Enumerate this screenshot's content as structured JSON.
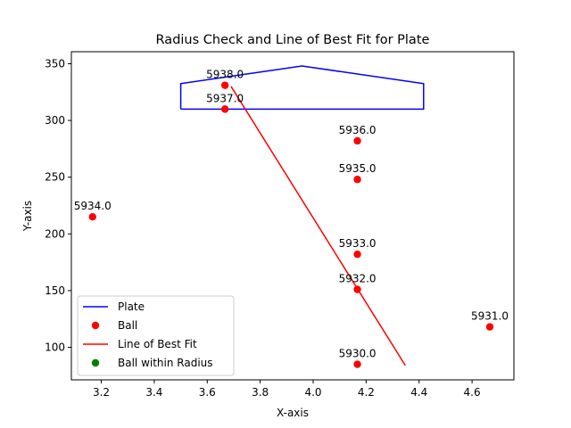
{
  "chart_data": {
    "type": "scatter",
    "title": "Radius Check and Line of Best Fit for Plate",
    "xlabel": "X-axis",
    "ylabel": "Y-axis",
    "xlim": [
      3.087,
      4.758
    ],
    "ylim": [
      71.3,
      360.6
    ],
    "xticks": [
      "3.2",
      "3.4",
      "3.6",
      "3.8",
      "4.0",
      "4.2",
      "4.4",
      "4.6"
    ],
    "xtick_values": [
      3.2,
      3.4,
      3.6,
      3.8,
      4.0,
      4.2,
      4.4,
      4.6
    ],
    "yticks": [
      "100",
      "150",
      "200",
      "250",
      "300",
      "350"
    ],
    "ytick_values": [
      100,
      150,
      200,
      250,
      300,
      350
    ],
    "grid": false,
    "legend_position": "lower-left",
    "legend": [
      {
        "label": "Plate",
        "kind": "line",
        "color": "#0000ff"
      },
      {
        "label": "Ball",
        "kind": "marker",
        "color": "#ff0000"
      },
      {
        "label": "Line of Best Fit",
        "kind": "line",
        "color": "#ff0000"
      },
      {
        "label": "Ball within Radius",
        "kind": "marker",
        "color": "#008000"
      }
    ],
    "plate": {
      "color": "#0000ff",
      "points": [
        [
          3.5,
          310
        ],
        [
          3.5,
          332.5
        ],
        [
          3.958,
          348
        ],
        [
          4.417,
          332.5
        ],
        [
          4.417,
          310
        ],
        [
          3.5,
          310
        ]
      ]
    },
    "balls": {
      "color": "#ff0000",
      "points": [
        {
          "x": 3.667,
          "y": 331,
          "label": "5938.0"
        },
        {
          "x": 3.667,
          "y": 310,
          "label": "5937.0"
        },
        {
          "x": 4.167,
          "y": 282,
          "label": "5936.0"
        },
        {
          "x": 4.167,
          "y": 248,
          "label": "5935.0"
        },
        {
          "x": 3.167,
          "y": 215,
          "label": "5934.0"
        },
        {
          "x": 4.167,
          "y": 182,
          "label": "5933.0"
        },
        {
          "x": 4.167,
          "y": 151,
          "label": "5932.0"
        },
        {
          "x": 4.667,
          "y": 118,
          "label": "5931.0"
        },
        {
          "x": 4.167,
          "y": 85,
          "label": "5930.0"
        }
      ]
    },
    "best_fit": {
      "color": "#ff0000",
      "points": [
        [
          3.69,
          330
        ],
        [
          4.348,
          84
        ]
      ]
    }
  }
}
